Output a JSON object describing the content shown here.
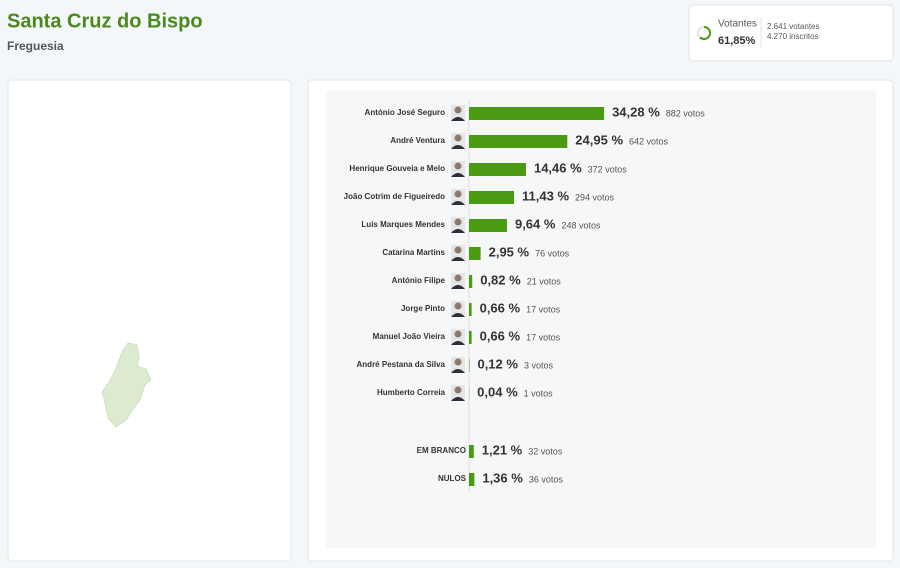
{
  "header": {
    "title": "Santa Cruz do Bispo",
    "subtitle": "Freguesia"
  },
  "turnout": {
    "label": "Votantes",
    "percent": 61.85,
    "percent_label": "61,85%",
    "voters": "2.641 votantes",
    "registered": "4.270 inscritos"
  },
  "candidates": [
    {
      "name": "António José Seguro",
      "percent": 34.28,
      "percent_label": "34,28 %",
      "votes": "882 votos"
    },
    {
      "name": "André Ventura",
      "percent": 24.95,
      "percent_label": "24,95 %",
      "votes": "642 votos"
    },
    {
      "name": "Henrique Gouveia e Melo",
      "percent": 14.46,
      "percent_label": "14,46 %",
      "votes": "372 votos"
    },
    {
      "name": "João Cotrim de Figueiredo",
      "percent": 11.43,
      "percent_label": "11,43 %",
      "votes": "294 votos"
    },
    {
      "name": "Luís Marques Mendes",
      "percent": 9.64,
      "percent_label": "9,64 %",
      "votes": "248 votos"
    },
    {
      "name": "Catarina Martins",
      "percent": 2.95,
      "percent_label": "2,95 %",
      "votes": "76 votos"
    },
    {
      "name": "António Filipe",
      "percent": 0.82,
      "percent_label": "0,82 %",
      "votes": "21 votos"
    },
    {
      "name": "Jorge Pinto",
      "percent": 0.66,
      "percent_label": "0,66 %",
      "votes": "17 votos"
    },
    {
      "name": "Manuel João Vieira",
      "percent": 0.66,
      "percent_label": "0,66 %",
      "votes": "17 votos"
    },
    {
      "name": "André Pestana da Silva",
      "percent": 0.12,
      "percent_label": "0,12 %",
      "votes": "3 votos"
    },
    {
      "name": "Humberto Correia",
      "percent": 0.04,
      "percent_label": "0,04 %",
      "votes": "1 votos"
    }
  ],
  "other": [
    {
      "name": "EM BRANCO",
      "percent": 1.21,
      "percent_label": "1,21 %",
      "votes": "32 votos"
    },
    {
      "name": "NULOS",
      "percent": 1.36,
      "percent_label": "1,36 %",
      "votes": "36 votos"
    }
  ]
}
